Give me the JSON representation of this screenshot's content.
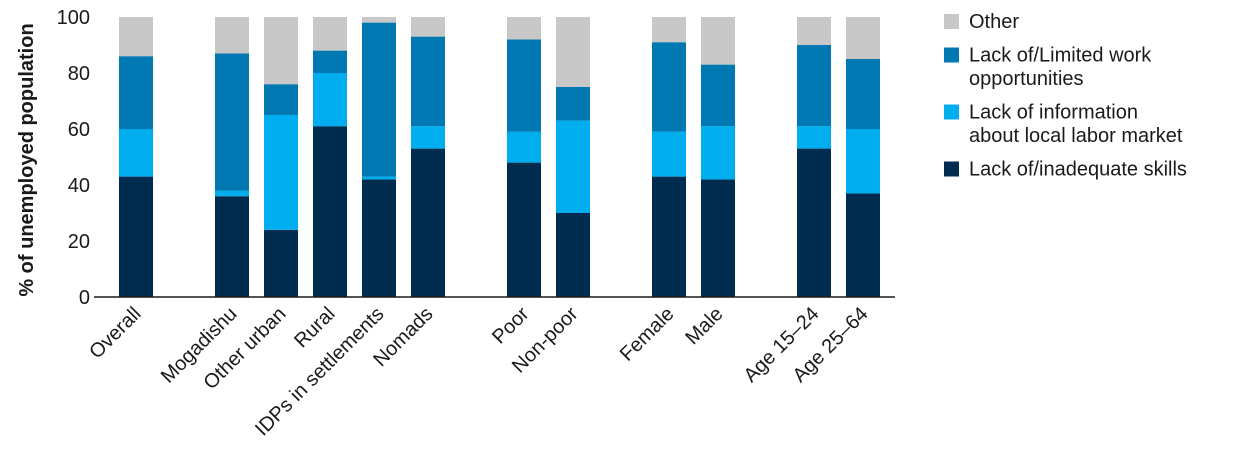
{
  "chart_data": {
    "type": "bar",
    "stacked": true,
    "title": "",
    "xlabel": "",
    "ylabel": "% of unemployed population",
    "ylim": [
      0,
      100
    ],
    "yticks": [
      0,
      20,
      40,
      60,
      80,
      100
    ],
    "grid": false,
    "legend_position": "right",
    "categories": [
      "Overall",
      "Mogadishu",
      "Other urban",
      "Rural",
      "IDPs in settlements",
      "Nomads",
      "Poor",
      "Non-poor",
      "Female",
      "Male",
      "Age 15–24",
      "Age 25–64"
    ],
    "groups": [
      [
        0
      ],
      [
        1,
        2,
        3,
        4,
        5
      ],
      [
        6,
        7
      ],
      [
        8,
        9
      ],
      [
        10,
        11
      ]
    ],
    "series": [
      {
        "name": "Lack of/inadequate skills",
        "color": "#002d4f",
        "values": [
          43,
          36,
          24,
          61,
          42,
          53,
          48,
          30,
          43,
          42,
          53,
          37
        ]
      },
      {
        "name": "Lack of information about local labor market",
        "color": "#00aeef",
        "values": [
          17,
          2,
          41,
          19,
          1,
          8,
          11,
          33,
          16,
          19,
          8,
          23
        ]
      },
      {
        "name": "Lack of/Limited work opportunities",
        "color": "#0078b2",
        "values": [
          26,
          49,
          11,
          8,
          55,
          32,
          33,
          12,
          32,
          22,
          29,
          25
        ]
      },
      {
        "name": "Other",
        "color": "#c8c8c8",
        "values": [
          14,
          13,
          24,
          12,
          2,
          7,
          8,
          25,
          9,
          17,
          10,
          15
        ]
      }
    ],
    "legend": [
      {
        "lines": [
          "Other"
        ],
        "color": "#c8c8c8"
      },
      {
        "lines": [
          "Lack of/Limited work",
          "opportunities"
        ],
        "color": "#0078b2"
      },
      {
        "lines": [
          "Lack of information",
          "about local labor market"
        ],
        "color": "#00aeef"
      },
      {
        "lines": [
          "Lack of/inadequate skills"
        ],
        "color": "#002d4f"
      }
    ]
  }
}
